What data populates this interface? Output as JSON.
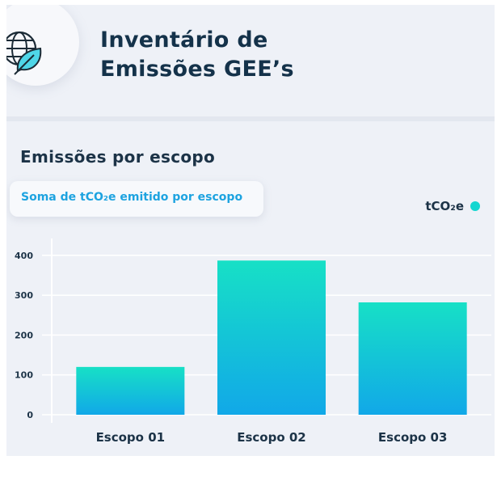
{
  "header": {
    "title_line1": "Inventário de",
    "title_line2": "Emissões GEE’s"
  },
  "section": {
    "title": "Emissões por escopo",
    "subtitle": "Soma de tCO₂e emitido por escopo"
  },
  "icons": {
    "logo": "globe-leaf-icon"
  },
  "colors": {
    "title": "#14324a",
    "accent": "#1da3e0",
    "bar_top": "#17e0c6",
    "bar_bottom": "#11a8e8"
  },
  "chart_data": {
    "type": "bar",
    "categories": [
      "Escopo 01",
      "Escopo 02",
      "Escopo 03"
    ],
    "series": [
      {
        "name": "tCO₂e",
        "values": [
          120,
          387,
          282
        ]
      }
    ],
    "ylim": [
      0,
      420
    ],
    "yticks": [
      0,
      100,
      200,
      300,
      400
    ],
    "grid": true,
    "legend": "top-right"
  }
}
